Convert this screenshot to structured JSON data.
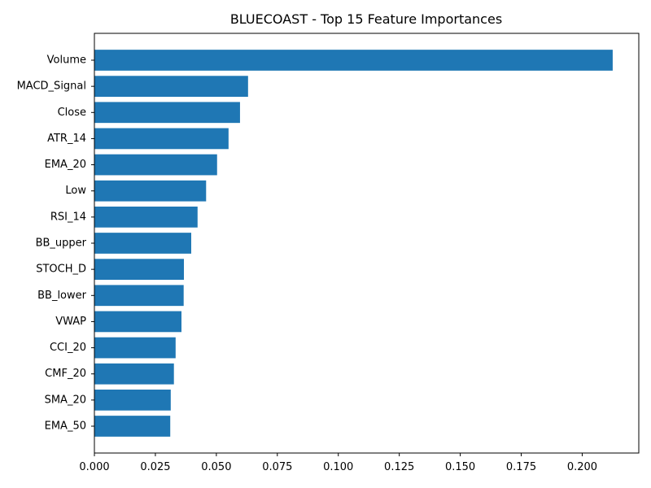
{
  "chart_data": {
    "type": "bar",
    "orientation": "horizontal",
    "title": "BLUECOAST - Top 15 Feature Importances",
    "xlabel": "",
    "ylabel": "",
    "categories": [
      "Volume",
      "MACD_Signal",
      "Close",
      "ATR_14",
      "EMA_20",
      "Low",
      "RSI_14",
      "BB_upper",
      "STOCH_D",
      "BB_lower",
      "VWAP",
      "CCI_20",
      "CMF_20",
      "SMA_20",
      "EMA_50"
    ],
    "values": [
      0.2125,
      0.063,
      0.0597,
      0.055,
      0.0503,
      0.0458,
      0.0423,
      0.0397,
      0.0367,
      0.0366,
      0.0357,
      0.0333,
      0.0326,
      0.0313,
      0.0311
    ],
    "xlim": [
      0,
      0.2232
    ],
    "xticks": [
      0.0,
      0.025,
      0.05,
      0.075,
      0.1,
      0.125,
      0.15,
      0.175,
      0.2
    ],
    "xtick_labels": [
      "0.000",
      "0.025",
      "0.050",
      "0.075",
      "0.100",
      "0.125",
      "0.150",
      "0.175",
      "0.200"
    ],
    "bar_color": "#1f77b4",
    "grid": false,
    "legend": "none"
  }
}
